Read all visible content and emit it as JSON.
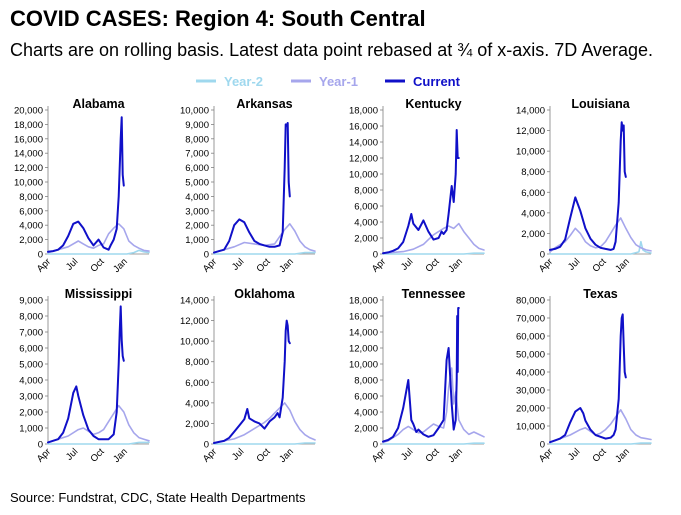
{
  "header": {
    "title": "COVID CASES: Region 4: South Central",
    "subtitle": "Charts are on rolling basis. Latest data point rebased at ¾ of x-axis. 7D Average."
  },
  "legend": [
    {
      "name": "Year-2",
      "color": "#9fd8ee"
    },
    {
      "name": "Year-1",
      "color": "#a6a6ec"
    },
    {
      "name": "Current",
      "color": "#1010c8"
    }
  ],
  "source": "Source: Fundstrat, CDC, State Health Departments",
  "x_tick_labels": [
    "Apr",
    "Jul",
    "Oct",
    "Jan"
  ],
  "chart_data": [
    {
      "type": "line",
      "title": "Alabama",
      "ylim": [
        0,
        20000
      ],
      "yticks": [
        "0",
        "2,000",
        "4,000",
        "6,000",
        "8,000",
        "10,000",
        "12,000",
        "14,000",
        "16,000",
        "18,000",
        "20,000"
      ],
      "series": [
        {
          "name": "Year-2",
          "x": [
            0.0,
            0.1,
            0.2,
            0.3,
            0.4,
            0.5,
            0.6,
            0.7,
            0.78,
            0.85,
            0.9,
            0.95,
            1.0
          ],
          "y": [
            0,
            0,
            0,
            0,
            0,
            0,
            0,
            0,
            0,
            200,
            500,
            300,
            200
          ]
        },
        {
          "name": "Year-1",
          "x": [
            0.0,
            0.1,
            0.2,
            0.3,
            0.35,
            0.4,
            0.45,
            0.5,
            0.55,
            0.6,
            0.65,
            0.7,
            0.75,
            0.8,
            0.85,
            0.9,
            0.95,
            1.0
          ],
          "y": [
            200,
            600,
            1000,
            1800,
            1400,
            1000,
            800,
            1200,
            1400,
            2800,
            3600,
            4200,
            3500,
            1800,
            1200,
            800,
            500,
            400
          ]
        },
        {
          "name": "Current",
          "x": [
            0.0,
            0.05,
            0.1,
            0.15,
            0.2,
            0.25,
            0.3,
            0.35,
            0.4,
            0.45,
            0.5,
            0.55,
            0.6,
            0.62,
            0.65,
            0.68,
            0.7,
            0.72,
            0.73,
            0.74,
            0.75
          ],
          "y": [
            300,
            400,
            600,
            1200,
            2500,
            4200,
            4500,
            3600,
            2200,
            1200,
            2000,
            900,
            600,
            1200,
            2000,
            3500,
            8000,
            16000,
            19000,
            11000,
            9500
          ]
        }
      ]
    },
    {
      "type": "line",
      "title": "Arkansas",
      "ylim": [
        0,
        10000
      ],
      "yticks": [
        "0",
        "1,000",
        "2,000",
        "3,000",
        "4,000",
        "5,000",
        "6,000",
        "7,000",
        "8,000",
        "9,000",
        "10,000"
      ],
      "series": [
        {
          "name": "Year-2",
          "x": [
            0.0,
            0.5,
            0.8,
            0.9,
            1.0
          ],
          "y": [
            0,
            0,
            0,
            100,
            100
          ]
        },
        {
          "name": "Year-1",
          "x": [
            0.0,
            0.1,
            0.2,
            0.3,
            0.4,
            0.5,
            0.6,
            0.65,
            0.7,
            0.75,
            0.8,
            0.85,
            0.9,
            0.95,
            1.0
          ],
          "y": [
            100,
            300,
            500,
            800,
            700,
            600,
            700,
            1200,
            1700,
            2100,
            1600,
            900,
            500,
            300,
            200
          ]
        },
        {
          "name": "Current",
          "x": [
            0.0,
            0.05,
            0.1,
            0.15,
            0.2,
            0.25,
            0.3,
            0.35,
            0.4,
            0.45,
            0.5,
            0.55,
            0.6,
            0.65,
            0.68,
            0.7,
            0.71,
            0.72,
            0.73,
            0.74,
            0.75
          ],
          "y": [
            100,
            200,
            300,
            900,
            2000,
            2400,
            2200,
            1500,
            900,
            700,
            600,
            500,
            500,
            600,
            1500,
            6000,
            9000,
            8900,
            9100,
            5000,
            4000
          ]
        }
      ]
    },
    {
      "type": "line",
      "title": "Kentucky",
      "ylim": [
        0,
        18000
      ],
      "yticks": [
        "0",
        "2,000",
        "4,000",
        "6,000",
        "8,000",
        "10,000",
        "12,000",
        "14,000",
        "16,000",
        "18,000"
      ],
      "series": [
        {
          "name": "Year-2",
          "x": [
            0.0,
            0.5,
            0.8,
            0.9,
            1.0
          ],
          "y": [
            0,
            0,
            0,
            100,
            100
          ]
        },
        {
          "name": "Year-1",
          "x": [
            0.0,
            0.1,
            0.2,
            0.3,
            0.4,
            0.45,
            0.5,
            0.55,
            0.6,
            0.65,
            0.7,
            0.75,
            0.8,
            0.85,
            0.9,
            0.95,
            1.0
          ],
          "y": [
            100,
            200,
            300,
            600,
            1200,
            1800,
            2400,
            2800,
            3200,
            3500,
            3200,
            3800,
            2800,
            2000,
            1200,
            700,
            500
          ]
        },
        {
          "name": "Current",
          "x": [
            0.0,
            0.05,
            0.1,
            0.15,
            0.2,
            0.25,
            0.28,
            0.3,
            0.35,
            0.4,
            0.45,
            0.5,
            0.55,
            0.58,
            0.6,
            0.63,
            0.65,
            0.68,
            0.7,
            0.72,
            0.73,
            0.74,
            0.75
          ],
          "y": [
            100,
            200,
            400,
            700,
            1500,
            3500,
            5000,
            3800,
            3000,
            4200,
            2800,
            1800,
            2000,
            2800,
            2500,
            3000,
            5000,
            8500,
            6500,
            10000,
            15500,
            12000,
            12000
          ]
        }
      ]
    },
    {
      "type": "line",
      "title": "Louisiana",
      "ylim": [
        0,
        14000
      ],
      "yticks": [
        "0",
        "2,000",
        "4,000",
        "6,000",
        "8,000",
        "10,000",
        "12,000",
        "14,000"
      ],
      "series": [
        {
          "name": "Year-2",
          "x": [
            0.0,
            0.5,
            0.8,
            0.88,
            0.9,
            0.92,
            0.95,
            1.0
          ],
          "y": [
            0,
            0,
            0,
            200,
            1200,
            400,
            200,
            100
          ]
        },
        {
          "name": "Year-1",
          "x": [
            0.0,
            0.05,
            0.1,
            0.15,
            0.2,
            0.25,
            0.3,
            0.35,
            0.4,
            0.45,
            0.5,
            0.55,
            0.6,
            0.65,
            0.7,
            0.75,
            0.8,
            0.85,
            0.9,
            0.95,
            1.0
          ],
          "y": [
            200,
            600,
            900,
            1200,
            1800,
            2500,
            2000,
            1200,
            800,
            600,
            700,
            1200,
            2000,
            2800,
            3500,
            2500,
            1600,
            900,
            600,
            400,
            300
          ]
        },
        {
          "name": "Current",
          "x": [
            0.0,
            0.05,
            0.1,
            0.15,
            0.2,
            0.25,
            0.3,
            0.35,
            0.4,
            0.45,
            0.5,
            0.55,
            0.6,
            0.63,
            0.65,
            0.68,
            0.7,
            0.71,
            0.72,
            0.73,
            0.74,
            0.75
          ],
          "y": [
            400,
            500,
            700,
            1400,
            3500,
            5500,
            4200,
            2500,
            1500,
            900,
            600,
            500,
            400,
            500,
            1200,
            5000,
            11000,
            12800,
            12000,
            12500,
            8000,
            7500
          ]
        }
      ]
    },
    {
      "type": "line",
      "title": "Mississippi",
      "ylim": [
        0,
        9000
      ],
      "yticks": [
        "0",
        "1,000",
        "2,000",
        "3,000",
        "4,000",
        "5,000",
        "6,000",
        "7,000",
        "8,000",
        "9,000"
      ],
      "series": [
        {
          "name": "Year-2",
          "x": [
            0.0,
            0.5,
            0.8,
            0.9,
            1.0
          ],
          "y": [
            0,
            0,
            0,
            100,
            100
          ]
        },
        {
          "name": "Year-1",
          "x": [
            0.0,
            0.1,
            0.2,
            0.3,
            0.35,
            0.4,
            0.45,
            0.5,
            0.55,
            0.6,
            0.65,
            0.7,
            0.75,
            0.8,
            0.85,
            0.9,
            0.95,
            1.0
          ],
          "y": [
            100,
            300,
            500,
            900,
            1000,
            800,
            600,
            700,
            900,
            1400,
            1900,
            2400,
            2000,
            1200,
            700,
            400,
            300,
            200
          ]
        },
        {
          "name": "Current",
          "x": [
            0.0,
            0.05,
            0.1,
            0.15,
            0.2,
            0.25,
            0.28,
            0.3,
            0.35,
            0.4,
            0.45,
            0.5,
            0.55,
            0.6,
            0.65,
            0.68,
            0.7,
            0.71,
            0.72,
            0.73,
            0.74,
            0.75
          ],
          "y": [
            100,
            200,
            300,
            700,
            1600,
            3200,
            3600,
            3000,
            1800,
            900,
            500,
            300,
            300,
            300,
            600,
            2000,
            5000,
            7000,
            8600,
            6500,
            5500,
            5200
          ]
        }
      ]
    },
    {
      "type": "line",
      "title": "Oklahoma",
      "ylim": [
        0,
        14000
      ],
      "yticks": [
        "0",
        "2,000",
        "4,000",
        "6,000",
        "8,000",
        "10,000",
        "12,000",
        "14,000"
      ],
      "series": [
        {
          "name": "Year-2",
          "x": [
            0.0,
            0.5,
            0.8,
            0.9,
            1.0
          ],
          "y": [
            0,
            0,
            0,
            100,
            100
          ]
        },
        {
          "name": "Year-1",
          "x": [
            0.0,
            0.1,
            0.2,
            0.3,
            0.35,
            0.4,
            0.45,
            0.5,
            0.55,
            0.6,
            0.65,
            0.7,
            0.75,
            0.8,
            0.85,
            0.9,
            0.95,
            1.0
          ],
          "y": [
            100,
            300,
            500,
            900,
            1200,
            1500,
            1800,
            2100,
            2500,
            3000,
            3500,
            4000,
            3300,
            2200,
            1400,
            900,
            600,
            400
          ]
        },
        {
          "name": "Current",
          "x": [
            0.0,
            0.05,
            0.1,
            0.15,
            0.2,
            0.25,
            0.3,
            0.33,
            0.35,
            0.4,
            0.45,
            0.5,
            0.55,
            0.6,
            0.63,
            0.65,
            0.68,
            0.7,
            0.71,
            0.72,
            0.73,
            0.74,
            0.75
          ],
          "y": [
            100,
            200,
            300,
            600,
            1200,
            1800,
            2400,
            3400,
            2500,
            2200,
            2000,
            1500,
            2200,
            2600,
            3000,
            2600,
            4500,
            8000,
            11000,
            12000,
            11500,
            10000,
            9800
          ]
        }
      ]
    },
    {
      "type": "line",
      "title": "Tennessee",
      "ylim": [
        0,
        18000
      ],
      "yticks": [
        "0",
        "2,000",
        "4,000",
        "6,000",
        "8,000",
        "10,000",
        "12,000",
        "14,000",
        "16,000",
        "18,000"
      ],
      "series": [
        {
          "name": "Year-2",
          "x": [
            0.0,
            0.5,
            0.8,
            0.9,
            1.0
          ],
          "y": [
            0,
            0,
            0,
            100,
            100
          ]
        },
        {
          "name": "Year-1",
          "x": [
            0.0,
            0.05,
            0.1,
            0.15,
            0.2,
            0.25,
            0.3,
            0.35,
            0.4,
            0.45,
            0.5,
            0.55,
            0.6,
            0.63,
            0.65,
            0.68,
            0.7,
            0.72,
            0.75,
            0.8,
            0.85,
            0.9,
            0.95,
            1.0
          ],
          "y": [
            200,
            400,
            800,
            1200,
            1800,
            2200,
            1800,
            1400,
            1500,
            2000,
            2500,
            2200,
            2000,
            4000,
            7000,
            9500,
            5000,
            6500,
            3000,
            1800,
            1200,
            1500,
            1200,
            900
          ]
        },
        {
          "name": "Current",
          "x": [
            0.0,
            0.05,
            0.1,
            0.15,
            0.2,
            0.25,
            0.28,
            0.3,
            0.33,
            0.35,
            0.4,
            0.45,
            0.5,
            0.55,
            0.6,
            0.63,
            0.65,
            0.68,
            0.7,
            0.72,
            0.73,
            0.735,
            0.74,
            0.745,
            0.75
          ],
          "y": [
            300,
            500,
            900,
            2000,
            4500,
            8000,
            3000,
            2500,
            1500,
            1800,
            1200,
            900,
            1100,
            2000,
            3000,
            10500,
            12000,
            5000,
            1800,
            3000,
            8000,
            16000,
            9000,
            17000,
            17000
          ]
        }
      ]
    },
    {
      "type": "line",
      "title": "Texas",
      "ylim": [
        0,
        80000
      ],
      "yticks": [
        "0",
        "10,000",
        "20,000",
        "30,000",
        "40,000",
        "50,000",
        "60,000",
        "70,000",
        "80,000"
      ],
      "series": [
        {
          "name": "Year-2",
          "x": [
            0.0,
            0.5,
            0.8,
            0.9,
            1.0
          ],
          "y": [
            0,
            0,
            0,
            500,
            500
          ]
        },
        {
          "name": "Year-1",
          "x": [
            0.0,
            0.1,
            0.2,
            0.3,
            0.35,
            0.4,
            0.45,
            0.5,
            0.55,
            0.6,
            0.65,
            0.7,
            0.75,
            0.8,
            0.85,
            0.9,
            0.95,
            1.0
          ],
          "y": [
            1000,
            3000,
            5000,
            8000,
            9000,
            7000,
            5000,
            6000,
            8000,
            11000,
            15000,
            19000,
            14000,
            8000,
            5000,
            3500,
            3000,
            2500
          ]
        },
        {
          "name": "Current",
          "x": [
            0.0,
            0.05,
            0.1,
            0.15,
            0.2,
            0.25,
            0.3,
            0.33,
            0.35,
            0.4,
            0.45,
            0.5,
            0.55,
            0.6,
            0.63,
            0.65,
            0.68,
            0.7,
            0.71,
            0.72,
            0.73,
            0.74,
            0.75
          ],
          "y": [
            1000,
            2000,
            3000,
            5000,
            12000,
            18000,
            20000,
            17000,
            13000,
            8000,
            5000,
            4000,
            3000,
            3500,
            5000,
            8000,
            25000,
            60000,
            70000,
            72000,
            55000,
            40000,
            37000
          ]
        }
      ]
    }
  ]
}
